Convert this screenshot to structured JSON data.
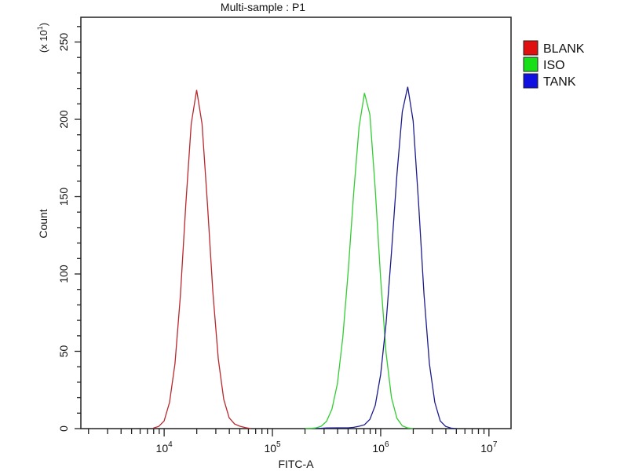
{
  "chart_data": {
    "type": "line",
    "title": "Multi-sample : P1",
    "xlabel": "FITC-A",
    "ylabel": "Count",
    "y_multiplier_label": "(x 10",
    "y_multiplier_exp": "1",
    "y_multiplier_close": ")",
    "x_scale": "log",
    "xlim": [
      1700,
      16000000
    ],
    "ylim": [
      0,
      266
    ],
    "grid": false,
    "legend_placement": "right",
    "x_ticks": [
      {
        "value": 10000,
        "base": "10",
        "exp": "4"
      },
      {
        "value": 100000,
        "base": "10",
        "exp": "5"
      },
      {
        "value": 1000000,
        "base": "10",
        "exp": "6"
      },
      {
        "value": 10000000,
        "base": "10",
        "exp": "7"
      }
    ],
    "y_ticks": [
      "0",
      "50",
      "100",
      "150",
      "200",
      "250"
    ],
    "series": [
      {
        "name": "BLANK",
        "color": "#b8282e",
        "legend_color": "#e01010",
        "x": [
          7943,
          8913,
          10000,
          11220,
          12589,
          14125,
          15849,
          17783,
          19953,
          22387,
          25119,
          28184,
          31623,
          35481,
          39811,
          44668,
          50119,
          56234,
          63096
        ],
        "y": [
          0.3,
          1.4,
          5,
          17,
          42,
          86,
          145,
          197,
          219,
          197,
          145,
          88,
          45,
          19,
          7,
          3,
          1.5,
          0.6,
          0
        ]
      },
      {
        "name": "ISO",
        "color": "#33cc33",
        "legend_color": "#18e018",
        "x": [
          199526,
          223872,
          251189,
          281838,
          316228,
          354813,
          398107,
          446684,
          501187,
          562341,
          630957,
          707946,
          794328,
          891251,
          1000000,
          1122018,
          1258925,
          1412538,
          1584893,
          1778279,
          1995262
        ],
        "y": [
          0,
          0.1,
          0.4,
          1.5,
          4.7,
          12.7,
          29,
          59,
          102,
          152,
          195,
          217,
          203,
          155,
          97,
          49,
          20,
          6.7,
          1.8,
          0.4,
          0
        ]
      },
      {
        "name": "TANK",
        "color": "#1c1c8c",
        "legend_color": "#1010e0",
        "x": [
          251189,
          316228,
          398107,
          501187,
          562341,
          630957,
          707946,
          794328,
          891251,
          1000000,
          1122018,
          1258925,
          1412538,
          1584893,
          1778279,
          1995262,
          2238721,
          2511886,
          2818383,
          3162278,
          3548134,
          3981072,
          4466836,
          5011872
        ],
        "y": [
          0,
          0.4,
          0.5,
          0.5,
          0.8,
          1.5,
          2.5,
          6,
          15,
          35,
          68,
          114,
          164,
          205,
          221,
          199,
          146,
          87,
          42,
          17,
          5,
          1.4,
          0.3,
          0
        ]
      }
    ]
  }
}
